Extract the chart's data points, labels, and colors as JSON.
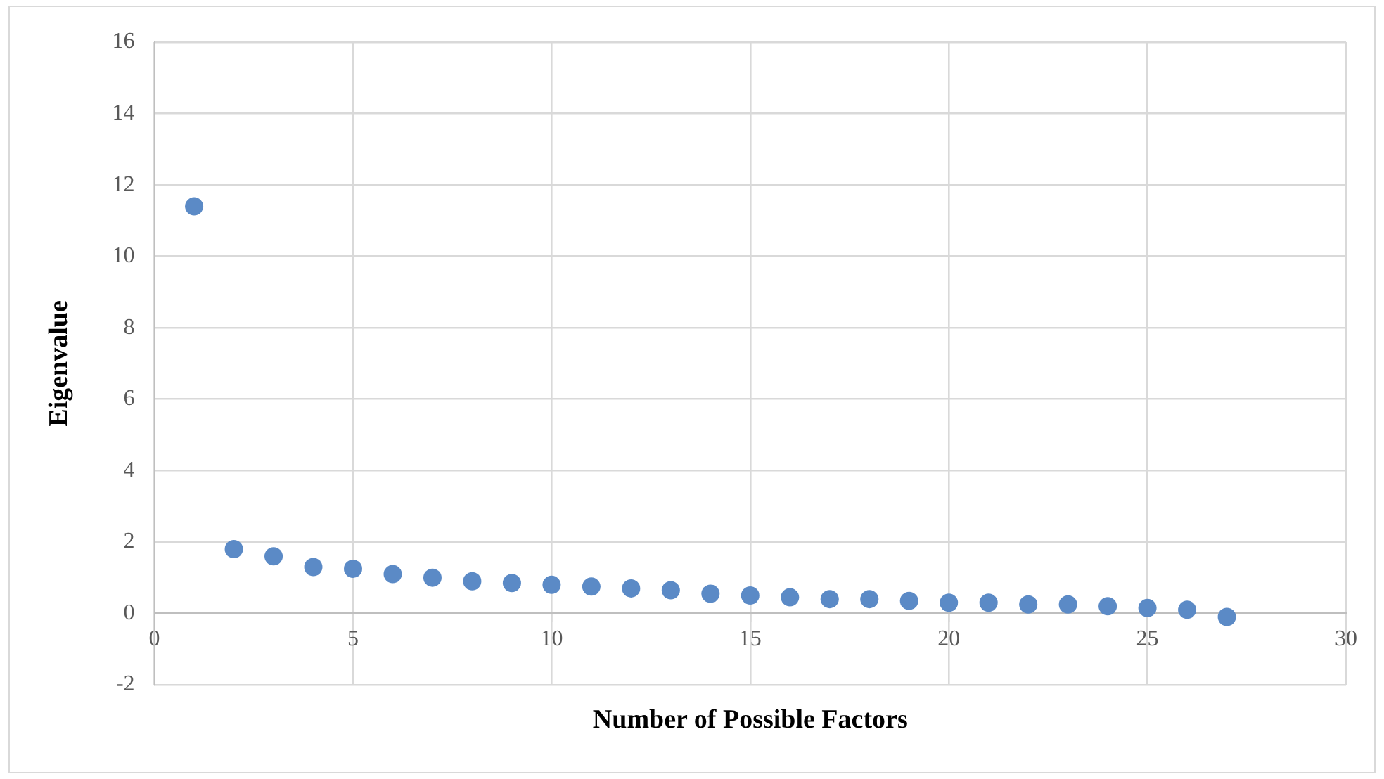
{
  "chart_data": {
    "type": "scatter",
    "xlabel": "Number of Possible Factors",
    "ylabel": "Eigenvalue",
    "x": [
      1,
      2,
      3,
      4,
      5,
      6,
      7,
      8,
      9,
      10,
      11,
      12,
      13,
      14,
      15,
      16,
      17,
      18,
      19,
      20,
      21,
      22,
      23,
      24,
      25,
      26,
      27
    ],
    "series": [
      {
        "color": "#5b8ac6",
        "values": [
          11.4,
          1.8,
          1.6,
          1.3,
          1.25,
          1.1,
          1.0,
          0.9,
          0.85,
          0.8,
          0.75,
          0.7,
          0.65,
          0.55,
          0.5,
          0.45,
          0.4,
          0.4,
          0.35,
          0.3,
          0.3,
          0.25,
          0.25,
          0.2,
          0.15,
          0.1,
          -0.1
        ]
      }
    ],
    "xlim": [
      0,
      30
    ],
    "xticks": [
      0,
      5,
      10,
      15,
      20,
      25,
      30
    ],
    "ylim": [
      -2,
      16
    ],
    "yticks": [
      -2,
      0,
      2,
      4,
      6,
      8,
      10,
      12,
      14,
      16
    ],
    "grid": true,
    "legend": false,
    "marker": "circle"
  }
}
